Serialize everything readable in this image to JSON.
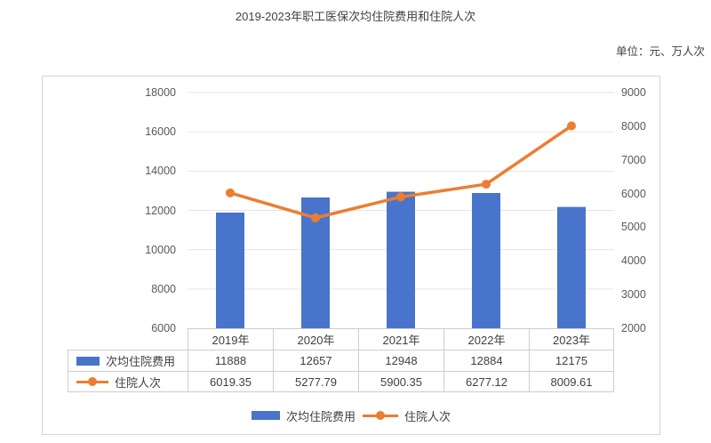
{
  "title": "2019-2023年职工医保次均住院费用和住院人次",
  "unit_label": "单位：元、万人次",
  "chart_data": {
    "type": "combo-bar-line",
    "categories": [
      "2019年",
      "2020年",
      "2021年",
      "2022年",
      "2023年"
    ],
    "series": [
      {
        "name": "次均住院费用",
        "type": "bar",
        "axis": "left",
        "values": [
          11888,
          12657,
          12948,
          12884,
          12175
        ]
      },
      {
        "name": "住院人次",
        "type": "line",
        "axis": "right",
        "values": [
          6019.35,
          5277.79,
          5900.35,
          6277.12,
          8009.61
        ]
      }
    ],
    "left_axis": {
      "min": 6000,
      "max": 18000,
      "step": 2000,
      "ticks": [
        "18000",
        "16000",
        "14000",
        "12000",
        "10000",
        "8000",
        "6000"
      ]
    },
    "right_axis": {
      "min": 2000,
      "max": 9000,
      "step": 1000,
      "ticks": [
        "9000",
        "8000",
        "7000",
        "6000",
        "5000",
        "4000",
        "3000",
        "2000"
      ]
    },
    "grid": "horizontal",
    "legend_position": "bottom",
    "show_data_table": true
  },
  "colors": {
    "bar": "#4874cb",
    "line": "#ed7d31",
    "grid": "#e6e6e6",
    "card_border": "#d4d4d4",
    "table_border": "#cdcdcd",
    "text": "#404040",
    "tick_text": "#595959"
  }
}
